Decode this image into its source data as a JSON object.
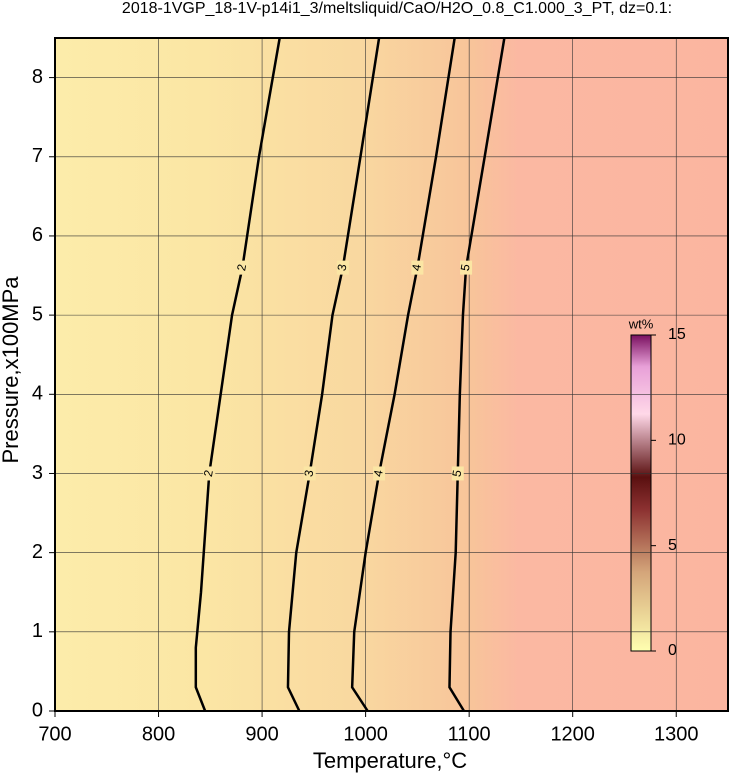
{
  "chart_data": {
    "type": "contour",
    "title": "2018-1VGP_18-1V-p14i1_3/meltsliquid/CaO/H2O_0.8_C1.000_3_PT, dz=0.1:",
    "xlabel": "Temperature,°C",
    "ylabel": "Pressure,x100MPa",
    "xlim": [
      700,
      1350
    ],
    "xticks": [
      700,
      800,
      900,
      1000,
      1100,
      1200,
      1300
    ],
    "ylim": [
      0,
      8.5
    ],
    "yticks": [
      0,
      1,
      2,
      3,
      4,
      5,
      6,
      7,
      8
    ],
    "grid": true,
    "contours": [
      {
        "level": 2,
        "x": [
          845,
          836,
          836,
          841,
          849,
          860,
          871,
          881,
          897,
          917
        ],
        "y": [
          0,
          0.3,
          0.8,
          1.5,
          3,
          4,
          5,
          5.6,
          7,
          8.5
        ]
      },
      {
        "level": 3,
        "x": [
          936,
          925,
          926,
          933,
          946,
          958,
          968,
          978,
          995,
          1013
        ],
        "y": [
          0,
          0.3,
          1,
          2,
          3,
          4,
          5,
          5.6,
          7,
          8.5
        ]
      },
      {
        "level": 4,
        "x": [
          1002,
          987,
          989,
          1000,
          1013,
          1028,
          1041,
          1050,
          1068,
          1086
        ],
        "y": [
          0,
          0.3,
          1,
          2,
          3,
          4,
          5,
          5.6,
          7,
          8.5
        ]
      },
      {
        "level": 5,
        "x": [
          1095,
          1081,
          1082,
          1087,
          1089,
          1091,
          1094,
          1097,
          1115,
          1134
        ],
        "y": [
          0,
          0.3,
          1,
          2,
          3,
          4,
          5,
          5.6,
          7,
          8.5
        ]
      }
    ],
    "colorbar": {
      "label": "wt%",
      "lim": [
        0,
        15
      ],
      "ticks": [
        0,
        5,
        10,
        15
      ]
    }
  }
}
